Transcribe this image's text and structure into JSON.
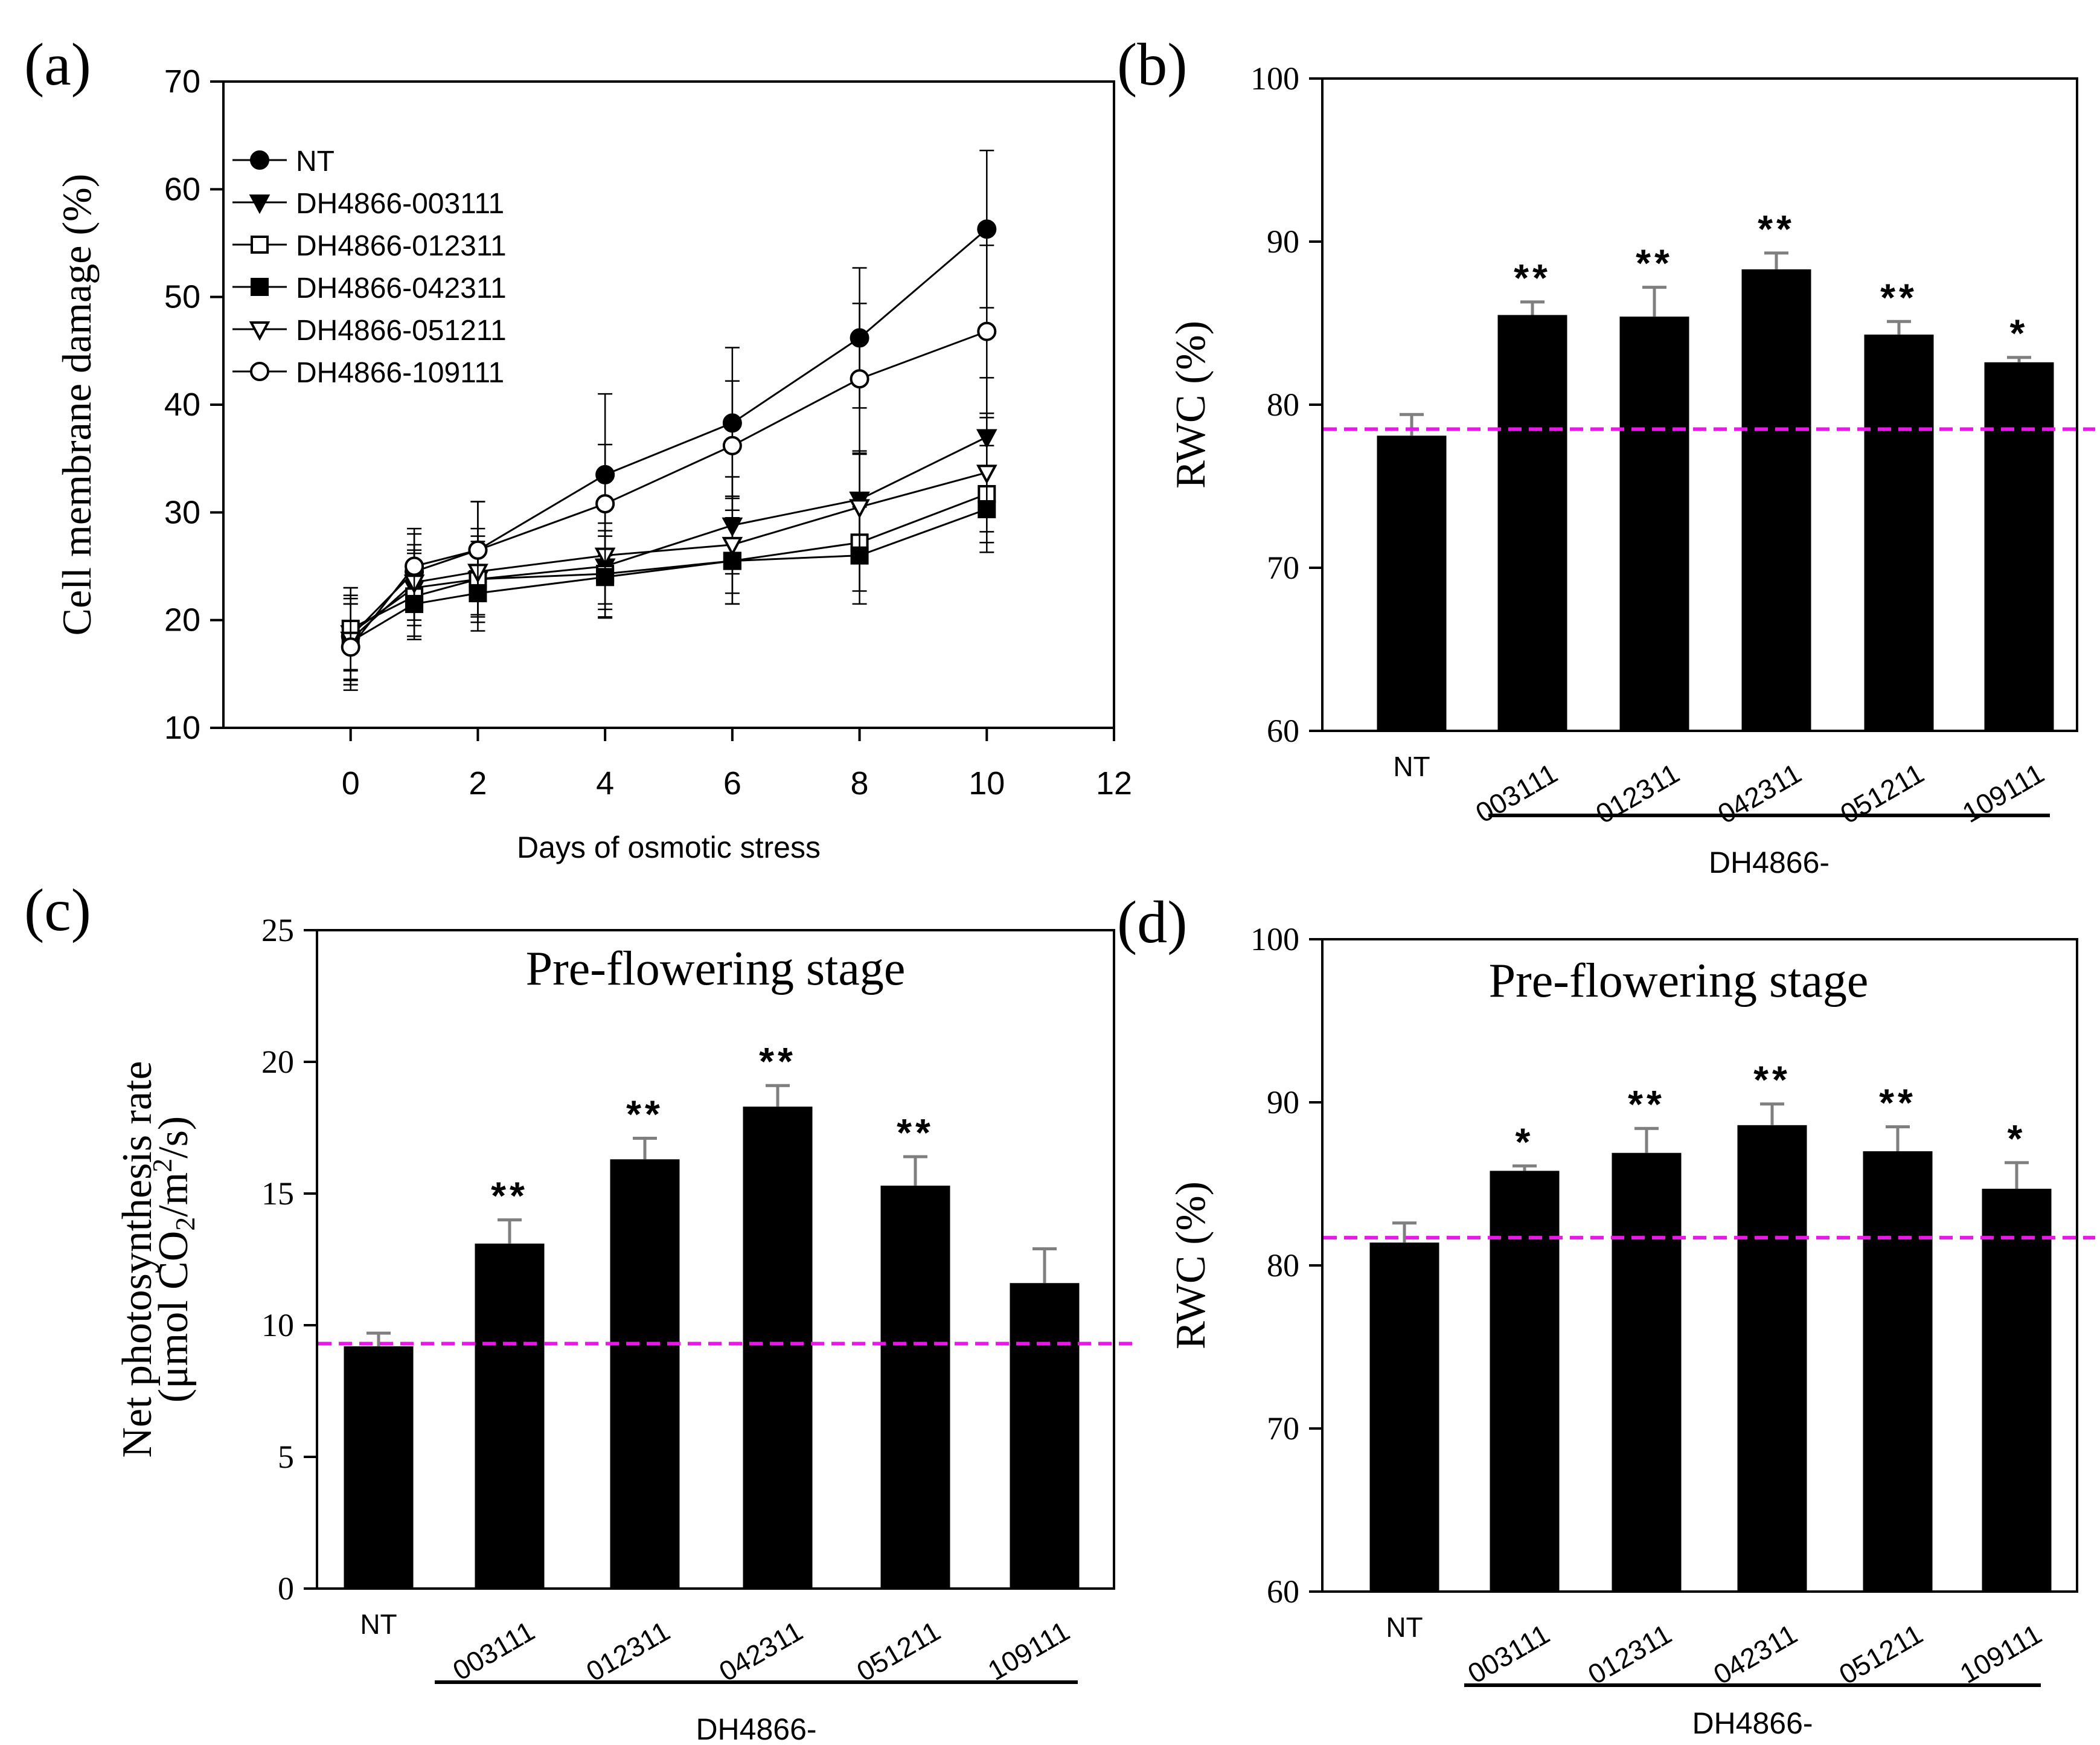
{
  "colors": {
    "ink": "#000000",
    "error_bar": "#7f7f7f",
    "reference": "#e619e6",
    "background": "#ffffff"
  },
  "chart_data": [
    {
      "panel": "(a)",
      "type": "line",
      "xlabel": "Days of osmotic stress",
      "ylabel": "Cell membrane damage (%)",
      "xlim": [
        -2,
        12
      ],
      "ylim": [
        10,
        70
      ],
      "xticks": [
        "0",
        "2",
        "4",
        "6",
        "8",
        "10",
        "12"
      ],
      "yticks": [
        "10",
        "20",
        "30",
        "40",
        "50",
        "60",
        "70"
      ],
      "legend_position": "top-left",
      "x": [
        0,
        1,
        2,
        4,
        6,
        8,
        10
      ],
      "series": [
        {
          "name": "NT",
          "marker": "filled-circle",
          "values": [
            18.5,
            24.5,
            26.5,
            33.5,
            38.3,
            46.2,
            56.3
          ],
          "errors": [
            4.5,
            3.5,
            4.5,
            7.5,
            7.0,
            6.5,
            7.3
          ]
        },
        {
          "name": "DH4866-003111",
          "marker": "filled-triangle-down",
          "values": [
            18.8,
            23.0,
            23.8,
            25.0,
            28.8,
            31.2,
            37.0
          ],
          "errors": [
            3.5,
            3.5,
            3.5,
            4.0,
            4.5,
            4.5,
            5.5
          ]
        },
        {
          "name": "DH4866-012311",
          "marker": "open-square",
          "values": [
            19.2,
            22.2,
            23.8,
            24.3,
            25.5,
            27.2,
            31.7
          ],
          "errors": [
            3.8,
            4.0,
            4.0,
            4.0,
            4.0,
            4.5,
            4.5
          ]
        },
        {
          "name": "DH4866-042311",
          "marker": "filled-square",
          "values": [
            18.0,
            21.5,
            22.5,
            24.0,
            25.5,
            26.0,
            30.3
          ],
          "errors": [
            3.5,
            3.0,
            3.5,
            3.8,
            4.0,
            4.5,
            4.0
          ]
        },
        {
          "name": "DH4866-051211",
          "marker": "open-triangle-down",
          "values": [
            18.2,
            23.5,
            24.5,
            26.0,
            27.0,
            30.5,
            33.7
          ],
          "errors": [
            3.8,
            3.5,
            4.0,
            4.5,
            4.5,
            5.0,
            5.5
          ]
        },
        {
          "name": "DH4866-109111",
          "marker": "open-circle",
          "values": [
            17.5,
            25.0,
            26.5,
            30.8,
            36.2,
            42.4,
            46.8
          ],
          "errors": [
            4.0,
            3.5,
            4.5,
            5.5,
            6.0,
            7.0,
            8.0
          ]
        }
      ]
    },
    {
      "panel": "(b)",
      "type": "bar",
      "title": "",
      "ylabel": "RWC (%)",
      "ylim": [
        60,
        100
      ],
      "yticks": [
        "60",
        "70",
        "80",
        "90",
        "100"
      ],
      "categories": [
        "NT",
        "003111",
        "012311",
        "042311",
        "051211",
        "109111"
      ],
      "values": [
        78.1,
        85.5,
        85.4,
        88.3,
        84.3,
        82.6
      ],
      "errors": [
        1.3,
        0.8,
        1.8,
        1.0,
        0.8,
        0.3
      ],
      "significance": [
        "",
        "**",
        "**",
        "**",
        "**",
        "*"
      ],
      "reference_line": 78.5,
      "group_label": "DH4866-"
    },
    {
      "panel": "(c)",
      "type": "bar",
      "title": "Pre-flowering stage",
      "ylabel_line1": "Net photosynthesis rate",
      "ylabel_line2_prefix": "(μmol CO",
      "ylabel_line2_sub": "2",
      "ylabel_line2_mid": "/m",
      "ylabel_line2_sup": "2",
      "ylabel_line2_suffix": "/s)",
      "ylim": [
        0,
        25
      ],
      "yticks": [
        "0",
        "5",
        "10",
        "15",
        "20",
        "25"
      ],
      "categories": [
        "NT",
        "003111",
        "012311",
        "042311",
        "051211",
        "109111"
      ],
      "values": [
        9.2,
        13.1,
        16.3,
        18.3,
        15.3,
        11.6
      ],
      "errors": [
        0.5,
        0.9,
        0.8,
        0.8,
        1.1,
        1.3
      ],
      "significance": [
        "",
        "**",
        "**",
        "**",
        "**",
        ""
      ],
      "reference_line": 9.3,
      "group_label": "DH4866-"
    },
    {
      "panel": "(d)",
      "type": "bar",
      "title": "Pre-flowering stage",
      "ylabel": "RWC (%)",
      "ylim": [
        60,
        100
      ],
      "yticks": [
        "60",
        "70",
        "80",
        "90",
        "100"
      ],
      "categories": [
        "NT",
        "003111",
        "012311",
        "042311",
        "051211",
        "109111"
      ],
      "values": [
        81.4,
        85.8,
        86.9,
        88.6,
        87.0,
        84.7
      ],
      "errors": [
        1.2,
        0.3,
        1.5,
        1.3,
        1.5,
        1.6
      ],
      "significance": [
        "",
        "*",
        "**",
        "**",
        "**",
        "*"
      ],
      "reference_line": 81.7,
      "group_label": "DH4866-"
    }
  ]
}
